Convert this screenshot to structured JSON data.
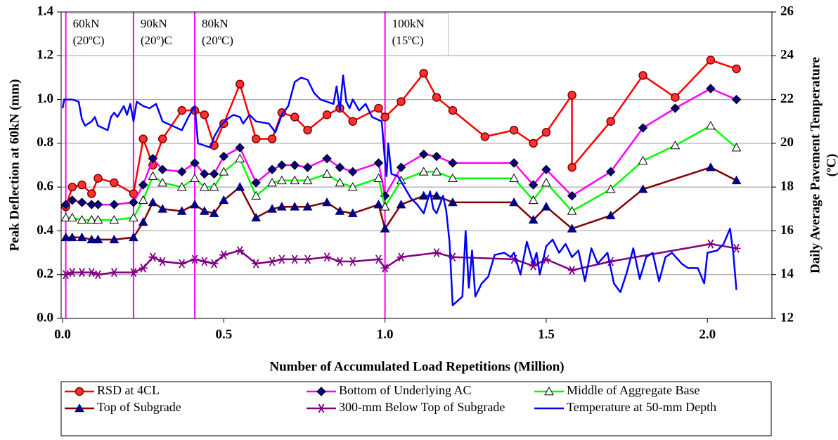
{
  "chart_data": {
    "type": "line",
    "xlabel": "Number of Accumulated Load Repetitions (Million)",
    "ylabel": "Peak Deflection at 60kN (mm)",
    "y2label": [
      "Daily Average Pavement Temperature",
      "(ºC)"
    ],
    "xlim": [
      0,
      2.2
    ],
    "xticks": [
      {
        "value": 0,
        "label": "0.0"
      },
      0.5,
      {
        "value": 1,
        "label": "1.0"
      },
      1.5,
      {
        "value": 2,
        "label": "2.0"
      }
    ],
    "ylim": [
      0,
      1.4
    ],
    "yticks": [
      {
        "value": 0,
        "label": "0.0"
      },
      0.2,
      0.4,
      0.6,
      0.8,
      {
        "value": 1,
        "label": "1.0"
      },
      1.2,
      1.4
    ],
    "y2lim": [
      12,
      26
    ],
    "y2ticks": [
      12,
      14,
      16,
      18,
      20,
      22,
      24,
      26
    ],
    "grid": true,
    "vlines": {
      "color": "#ff00ff",
      "items": [
        {
          "x": 0.01,
          "label": [
            "60kN",
            "(20ºC)"
          ]
        },
        {
          "x": 0.22,
          "label": [
            "90kN",
            "(20º)C"
          ]
        },
        {
          "x": 0.41,
          "label": [
            "80kN",
            "(20ºC)"
          ]
        },
        {
          "x": 1.0,
          "label": [
            "100kN",
            "(15ºC)"
          ]
        }
      ]
    },
    "series": [
      {
        "name": "RSD at 4CL",
        "color": "#ff0000",
        "marker": "circle",
        "marker_color": "#ff3030",
        "x": [
          0.01,
          0.03,
          0.06,
          0.09,
          0.11,
          0.16,
          0.22,
          0.25,
          0.28,
          0.31,
          0.37,
          0.41,
          0.44,
          0.47,
          0.5,
          0.55,
          0.6,
          0.65,
          0.68,
          0.72,
          0.76,
          0.82,
          0.86,
          0.9,
          0.98,
          1.0,
          1.05,
          1.12,
          1.16,
          1.21,
          1.31,
          1.4,
          1.46,
          1.5,
          1.58,
          1.58,
          1.7,
          1.8,
          1.9,
          2.01,
          2.09
        ],
        "values": [
          0.51,
          0.6,
          0.61,
          0.57,
          0.64,
          0.62,
          0.57,
          0.82,
          0.7,
          0.82,
          0.95,
          0.95,
          0.93,
          0.79,
          0.89,
          1.07,
          0.82,
          0.82,
          0.94,
          0.92,
          0.86,
          0.93,
          0.96,
          0.9,
          0.96,
          0.92,
          0.99,
          1.12,
          1.01,
          0.95,
          0.83,
          0.86,
          0.8,
          0.85,
          1.02,
          0.69,
          0.9,
          1.11,
          1.01,
          1.18,
          1.14
        ]
      },
      {
        "name": "Bottom of Underlying AC",
        "color": "#ff00ff",
        "marker": "diamond",
        "marker_color": "#000080",
        "x": [
          0.01,
          0.03,
          0.06,
          0.09,
          0.11,
          0.16,
          0.22,
          0.25,
          0.28,
          0.31,
          0.37,
          0.41,
          0.44,
          0.47,
          0.5,
          0.55,
          0.6,
          0.65,
          0.68,
          0.72,
          0.76,
          0.82,
          0.86,
          0.9,
          0.98,
          1.0,
          1.05,
          1.12,
          1.16,
          1.21,
          1.4,
          1.46,
          1.5,
          1.58,
          1.7,
          1.8,
          1.9,
          2.01,
          2.09
        ],
        "values": [
          0.52,
          0.54,
          0.53,
          0.52,
          0.52,
          0.52,
          0.53,
          0.61,
          0.73,
          0.68,
          0.67,
          0.71,
          0.66,
          0.66,
          0.74,
          0.78,
          0.62,
          0.68,
          0.7,
          0.7,
          0.69,
          0.73,
          0.69,
          0.67,
          0.71,
          0.56,
          0.69,
          0.75,
          0.74,
          0.71,
          0.71,
          0.61,
          0.68,
          0.56,
          0.67,
          0.87,
          0.96,
          1.05,
          1.0
        ]
      },
      {
        "name": "Middle of Aggregate Base",
        "color": "#00ff00",
        "marker": "triangle-open",
        "marker_color": "#000000",
        "x": [
          0.01,
          0.03,
          0.06,
          0.09,
          0.11,
          0.16,
          0.22,
          0.25,
          0.28,
          0.31,
          0.37,
          0.41,
          0.44,
          0.47,
          0.5,
          0.55,
          0.6,
          0.65,
          0.68,
          0.72,
          0.76,
          0.82,
          0.86,
          0.9,
          0.98,
          1.0,
          1.05,
          1.12,
          1.16,
          1.21,
          1.4,
          1.46,
          1.5,
          1.58,
          1.7,
          1.8,
          1.9,
          2.01,
          2.09
        ],
        "values": [
          0.46,
          0.46,
          0.45,
          0.45,
          0.45,
          0.45,
          0.46,
          0.54,
          0.65,
          0.62,
          0.6,
          0.64,
          0.6,
          0.6,
          0.67,
          0.73,
          0.56,
          0.62,
          0.63,
          0.63,
          0.63,
          0.66,
          0.62,
          0.6,
          0.64,
          0.51,
          0.63,
          0.67,
          0.67,
          0.64,
          0.64,
          0.54,
          0.62,
          0.49,
          0.59,
          0.72,
          0.79,
          0.88,
          0.78
        ]
      },
      {
        "name": "Top of Subgrade",
        "color": "#800000",
        "marker": "triangle",
        "marker_color": "#000080",
        "x": [
          0.01,
          0.03,
          0.06,
          0.09,
          0.11,
          0.16,
          0.22,
          0.25,
          0.28,
          0.31,
          0.37,
          0.41,
          0.44,
          0.47,
          0.5,
          0.55,
          0.6,
          0.65,
          0.68,
          0.72,
          0.76,
          0.82,
          0.86,
          0.9,
          0.98,
          1.0,
          1.05,
          1.12,
          1.16,
          1.21,
          1.4,
          1.46,
          1.5,
          1.58,
          1.7,
          1.8,
          2.01,
          2.09
        ],
        "values": [
          0.37,
          0.37,
          0.37,
          0.36,
          0.36,
          0.36,
          0.37,
          0.44,
          0.53,
          0.5,
          0.49,
          0.52,
          0.49,
          0.48,
          0.54,
          0.6,
          0.46,
          0.5,
          0.51,
          0.51,
          0.51,
          0.53,
          0.49,
          0.48,
          0.52,
          0.41,
          0.52,
          0.56,
          0.56,
          0.53,
          0.53,
          0.45,
          0.51,
          0.41,
          0.47,
          0.59,
          0.69,
          0.63
        ]
      },
      {
        "name": "300-mm Below Top of Subgrade",
        "color": "#800080",
        "marker": "star",
        "marker_color": "#800080",
        "x": [
          0.01,
          0.03,
          0.06,
          0.09,
          0.11,
          0.16,
          0.22,
          0.25,
          0.28,
          0.31,
          0.37,
          0.41,
          0.44,
          0.47,
          0.5,
          0.55,
          0.6,
          0.65,
          0.68,
          0.72,
          0.76,
          0.82,
          0.86,
          0.9,
          0.98,
          1.0,
          1.05,
          1.16,
          1.21,
          1.4,
          1.46,
          1.5,
          1.58,
          1.7,
          2.01,
          2.09
        ],
        "values": [
          0.2,
          0.21,
          0.21,
          0.21,
          0.2,
          0.21,
          0.21,
          0.23,
          0.28,
          0.26,
          0.25,
          0.27,
          0.26,
          0.25,
          0.29,
          0.31,
          0.25,
          0.26,
          0.27,
          0.27,
          0.27,
          0.28,
          0.26,
          0.26,
          0.27,
          0.23,
          0.28,
          0.3,
          0.28,
          0.27,
          0.24,
          0.27,
          0.22,
          0.26,
          0.34,
          0.32
        ]
      },
      {
        "name": "Temperature at 50-mm Depth",
        "color": "#0000ff",
        "axis": "y2",
        "x": [
          0,
          0.005,
          0.03,
          0.05,
          0.06,
          0.07,
          0.09,
          0.1,
          0.11,
          0.14,
          0.15,
          0.16,
          0.17,
          0.19,
          0.2,
          0.21,
          0.22,
          0.23,
          0.25,
          0.27,
          0.29,
          0.31,
          0.34,
          0.37,
          0.39,
          0.41,
          0.42,
          0.44,
          0.46,
          0.47,
          0.49,
          0.51,
          0.53,
          0.55,
          0.56,
          0.58,
          0.6,
          0.64,
          0.66,
          0.68,
          0.7,
          0.72,
          0.74,
          0.76,
          0.78,
          0.8,
          0.82,
          0.84,
          0.85,
          0.86,
          0.87,
          0.88,
          0.89,
          0.9,
          0.92,
          0.94,
          0.96,
          0.99,
          1.0,
          1.005,
          1.01,
          1.02,
          1.04,
          1.06,
          1.08,
          1.1,
          1.12,
          1.14,
          1.15,
          1.16,
          1.18,
          1.19,
          1.2,
          1.21,
          1.24,
          1.25,
          1.26,
          1.27,
          1.28,
          1.3,
          1.32,
          1.34,
          1.37,
          1.39,
          1.4,
          1.42,
          1.44,
          1.46,
          1.47,
          1.48,
          1.5,
          1.52,
          1.54,
          1.56,
          1.58,
          1.6,
          1.62,
          1.64,
          1.66,
          1.69,
          1.71,
          1.73,
          1.75,
          1.77,
          1.79,
          1.81,
          1.83,
          1.85,
          1.87,
          1.89,
          1.92,
          1.94,
          1.97,
          1.99,
          2.0,
          2.03,
          2.05,
          2.07,
          2.08,
          2.09
        ],
        "values": [
          21.6,
          22.0,
          22.0,
          21.9,
          21.1,
          20.8,
          21.0,
          21.2,
          20.8,
          20.6,
          21.2,
          21.4,
          21.2,
          21.7,
          21.3,
          21.8,
          21.0,
          21.9,
          21.7,
          21.6,
          21.8,
          21.0,
          20.8,
          20.6,
          21.2,
          21.7,
          20.0,
          19.9,
          19.8,
          20.3,
          20.8,
          21.1,
          21.3,
          21.2,
          20.9,
          21.3,
          21.0,
          20.9,
          20.5,
          21.3,
          21.7,
          22.8,
          23.0,
          22.9,
          22.3,
          22.0,
          21.9,
          21.8,
          22.6,
          21.5,
          23.1,
          21.9,
          21.6,
          22.0,
          21.5,
          21.8,
          21.2,
          21.0,
          19.2,
          18.5,
          20.0,
          18.6,
          18.5,
          18.0,
          17.5,
          17.2,
          16.8,
          17.8,
          17.0,
          16.8,
          17.6,
          16.9,
          15.5,
          12.6,
          13.0,
          16.0,
          13.4,
          15.1,
          13.0,
          13.6,
          13.9,
          14.9,
          15.0,
          14.8,
          15.0,
          14.0,
          15.5,
          14.5,
          15.0,
          14.0,
          15.3,
          15.6,
          15.0,
          15.4,
          14.8,
          15.1,
          13.7,
          15.2,
          14.5,
          15.0,
          13.6,
          13.2,
          14.1,
          15.2,
          13.8,
          14.8,
          15.0,
          13.7,
          14.8,
          15.0,
          14.5,
          14.3,
          14.3,
          13.6,
          15.0,
          15.1,
          15.4,
          16.1,
          15.0,
          13.3
        ]
      }
    ]
  }
}
